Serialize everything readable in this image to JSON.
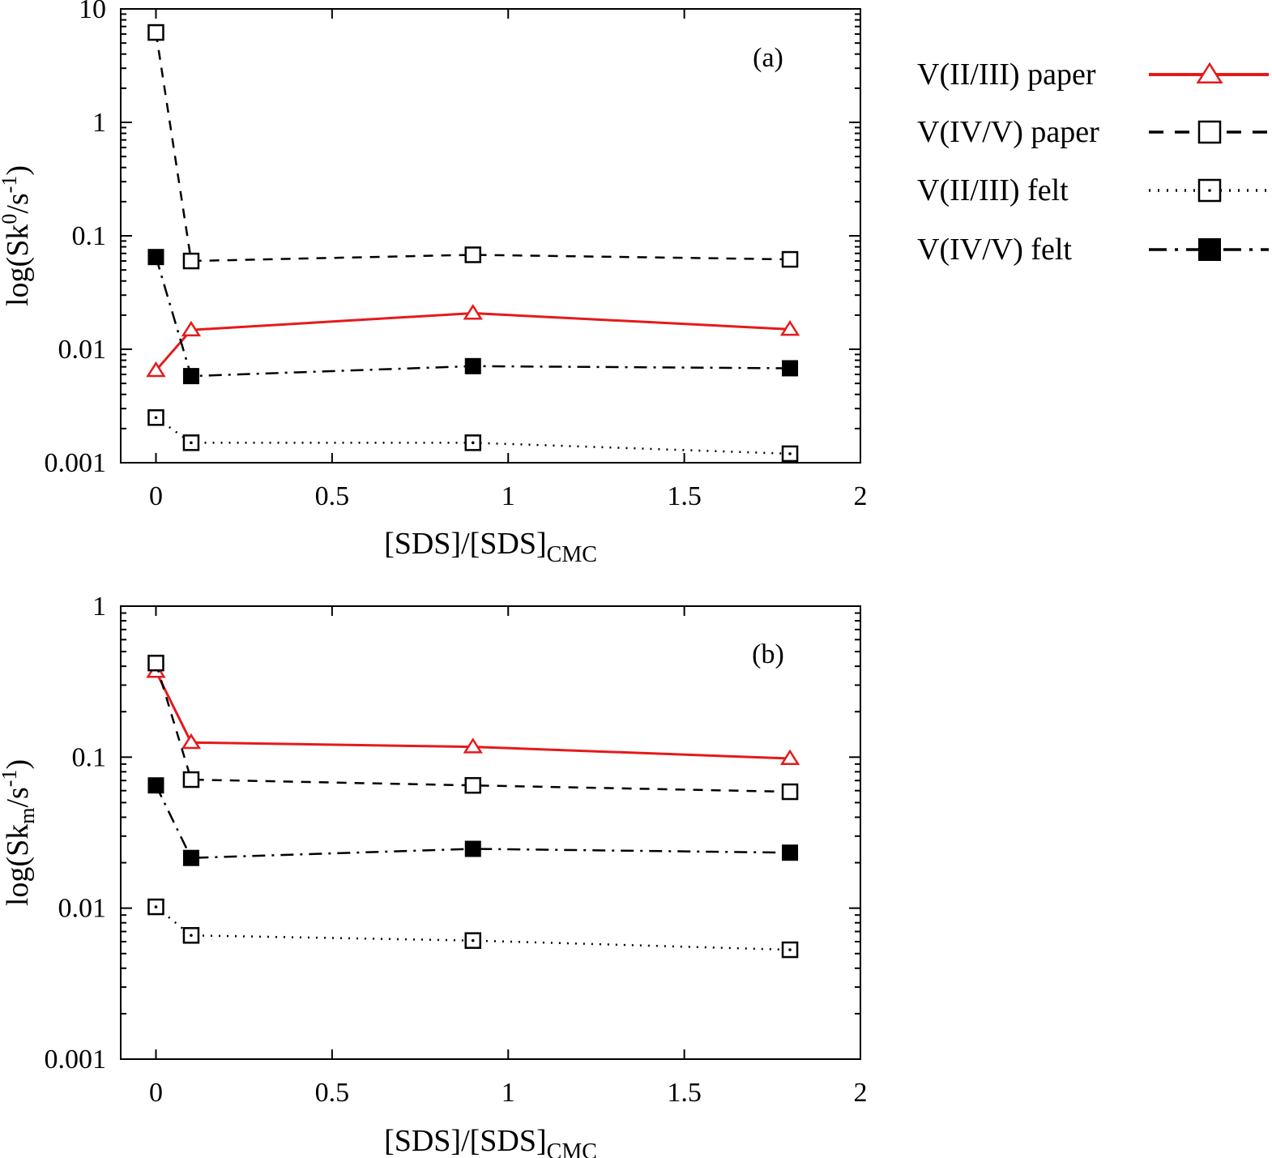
{
  "legend": {
    "entries": [
      {
        "label": "V(II/III) paper",
        "color": "#e41a1c",
        "dash": "solid",
        "marker": "triangle-open"
      },
      {
        "label": "V(IV/V) paper",
        "color": "#000000",
        "dash": "dashed",
        "marker": "square-open"
      },
      {
        "label": "V(II/III) felt",
        "color": "#000000",
        "dash": "dotted",
        "marker": "square-open-dot"
      },
      {
        "label": "V(IV/V) felt",
        "color": "#000000",
        "dash": "dashdot",
        "marker": "square-filled"
      }
    ]
  },
  "chart_data": [
    {
      "type": "line",
      "panel_label": "(a)",
      "xlabel": "[SDS]/[SDS]",
      "xlabel_sub": "CMC",
      "ylabel": "log(Sk",
      "ylabel_parts": [
        {
          "t": "log(Sk",
          "s": "normal"
        },
        {
          "t": "0",
          "s": "sup"
        },
        {
          "t": "/s",
          "s": "normal"
        },
        {
          "t": "-1",
          "s": "sup"
        },
        {
          "t": ")",
          "s": "normal"
        }
      ],
      "yscale": "log",
      "xlim": [
        -0.1,
        2
      ],
      "ylim": [
        0.001,
        10
      ],
      "xticks": [
        0,
        0.5,
        1,
        1.5,
        2
      ],
      "xtick_labels": [
        "0",
        "0.5",
        "1",
        "1.5",
        "2"
      ],
      "yticks": [
        0.001,
        0.01,
        0.1,
        1,
        10
      ],
      "ytick_labels": [
        "0.001",
        "0.01",
        "0.1",
        "1",
        "10"
      ],
      "x": [
        0,
        0.1,
        0.9,
        1.8
      ],
      "series": [
        {
          "name": "V(II/III) paper",
          "values": [
            0.0065,
            0.0148,
            0.0208,
            0.015
          ]
        },
        {
          "name": "V(IV/V) paper",
          "values": [
            6.2,
            0.06,
            0.068,
            0.062
          ]
        },
        {
          "name": "V(II/III) felt",
          "values": [
            0.0025,
            0.0015,
            0.0015,
            0.0012
          ]
        },
        {
          "name": "V(IV/V) felt",
          "values": [
            0.065,
            0.0058,
            0.0071,
            0.0068
          ]
        }
      ]
    },
    {
      "type": "line",
      "panel_label": "(b)",
      "xlabel": "[SDS]/[SDS]",
      "xlabel_sub": "CMC",
      "ylabel": "log(Sk",
      "ylabel_parts": [
        {
          "t": "log(Sk",
          "s": "normal"
        },
        {
          "t": "m",
          "s": "sub"
        },
        {
          "t": "/s",
          "s": "normal"
        },
        {
          "t": "-1",
          "s": "sup"
        },
        {
          "t": ")",
          "s": "normal"
        }
      ],
      "yscale": "log",
      "xlim": [
        -0.1,
        2
      ],
      "ylim": [
        0.001,
        1
      ],
      "xticks": [
        0,
        0.5,
        1,
        1.5,
        2
      ],
      "xtick_labels": [
        "0",
        "0.5",
        "1",
        "1.5",
        "2"
      ],
      "yticks": [
        0.001,
        0.01,
        0.1,
        1
      ],
      "ytick_labels": [
        "0.001",
        "0.01",
        "0.1",
        "1"
      ],
      "x": [
        0,
        0.1,
        0.9,
        1.8
      ],
      "series": [
        {
          "name": "V(II/III) paper",
          "values": [
            0.37,
            0.125,
            0.117,
            0.098
          ]
        },
        {
          "name": "V(IV/V) paper",
          "values": [
            0.42,
            0.071,
            0.065,
            0.059
          ]
        },
        {
          "name": "V(II/III) felt",
          "values": [
            0.0102,
            0.0066,
            0.0061,
            0.0053
          ]
        },
        {
          "name": "V(IV/V) felt",
          "values": [
            0.065,
            0.0215,
            0.0247,
            0.0233
          ]
        }
      ]
    }
  ]
}
